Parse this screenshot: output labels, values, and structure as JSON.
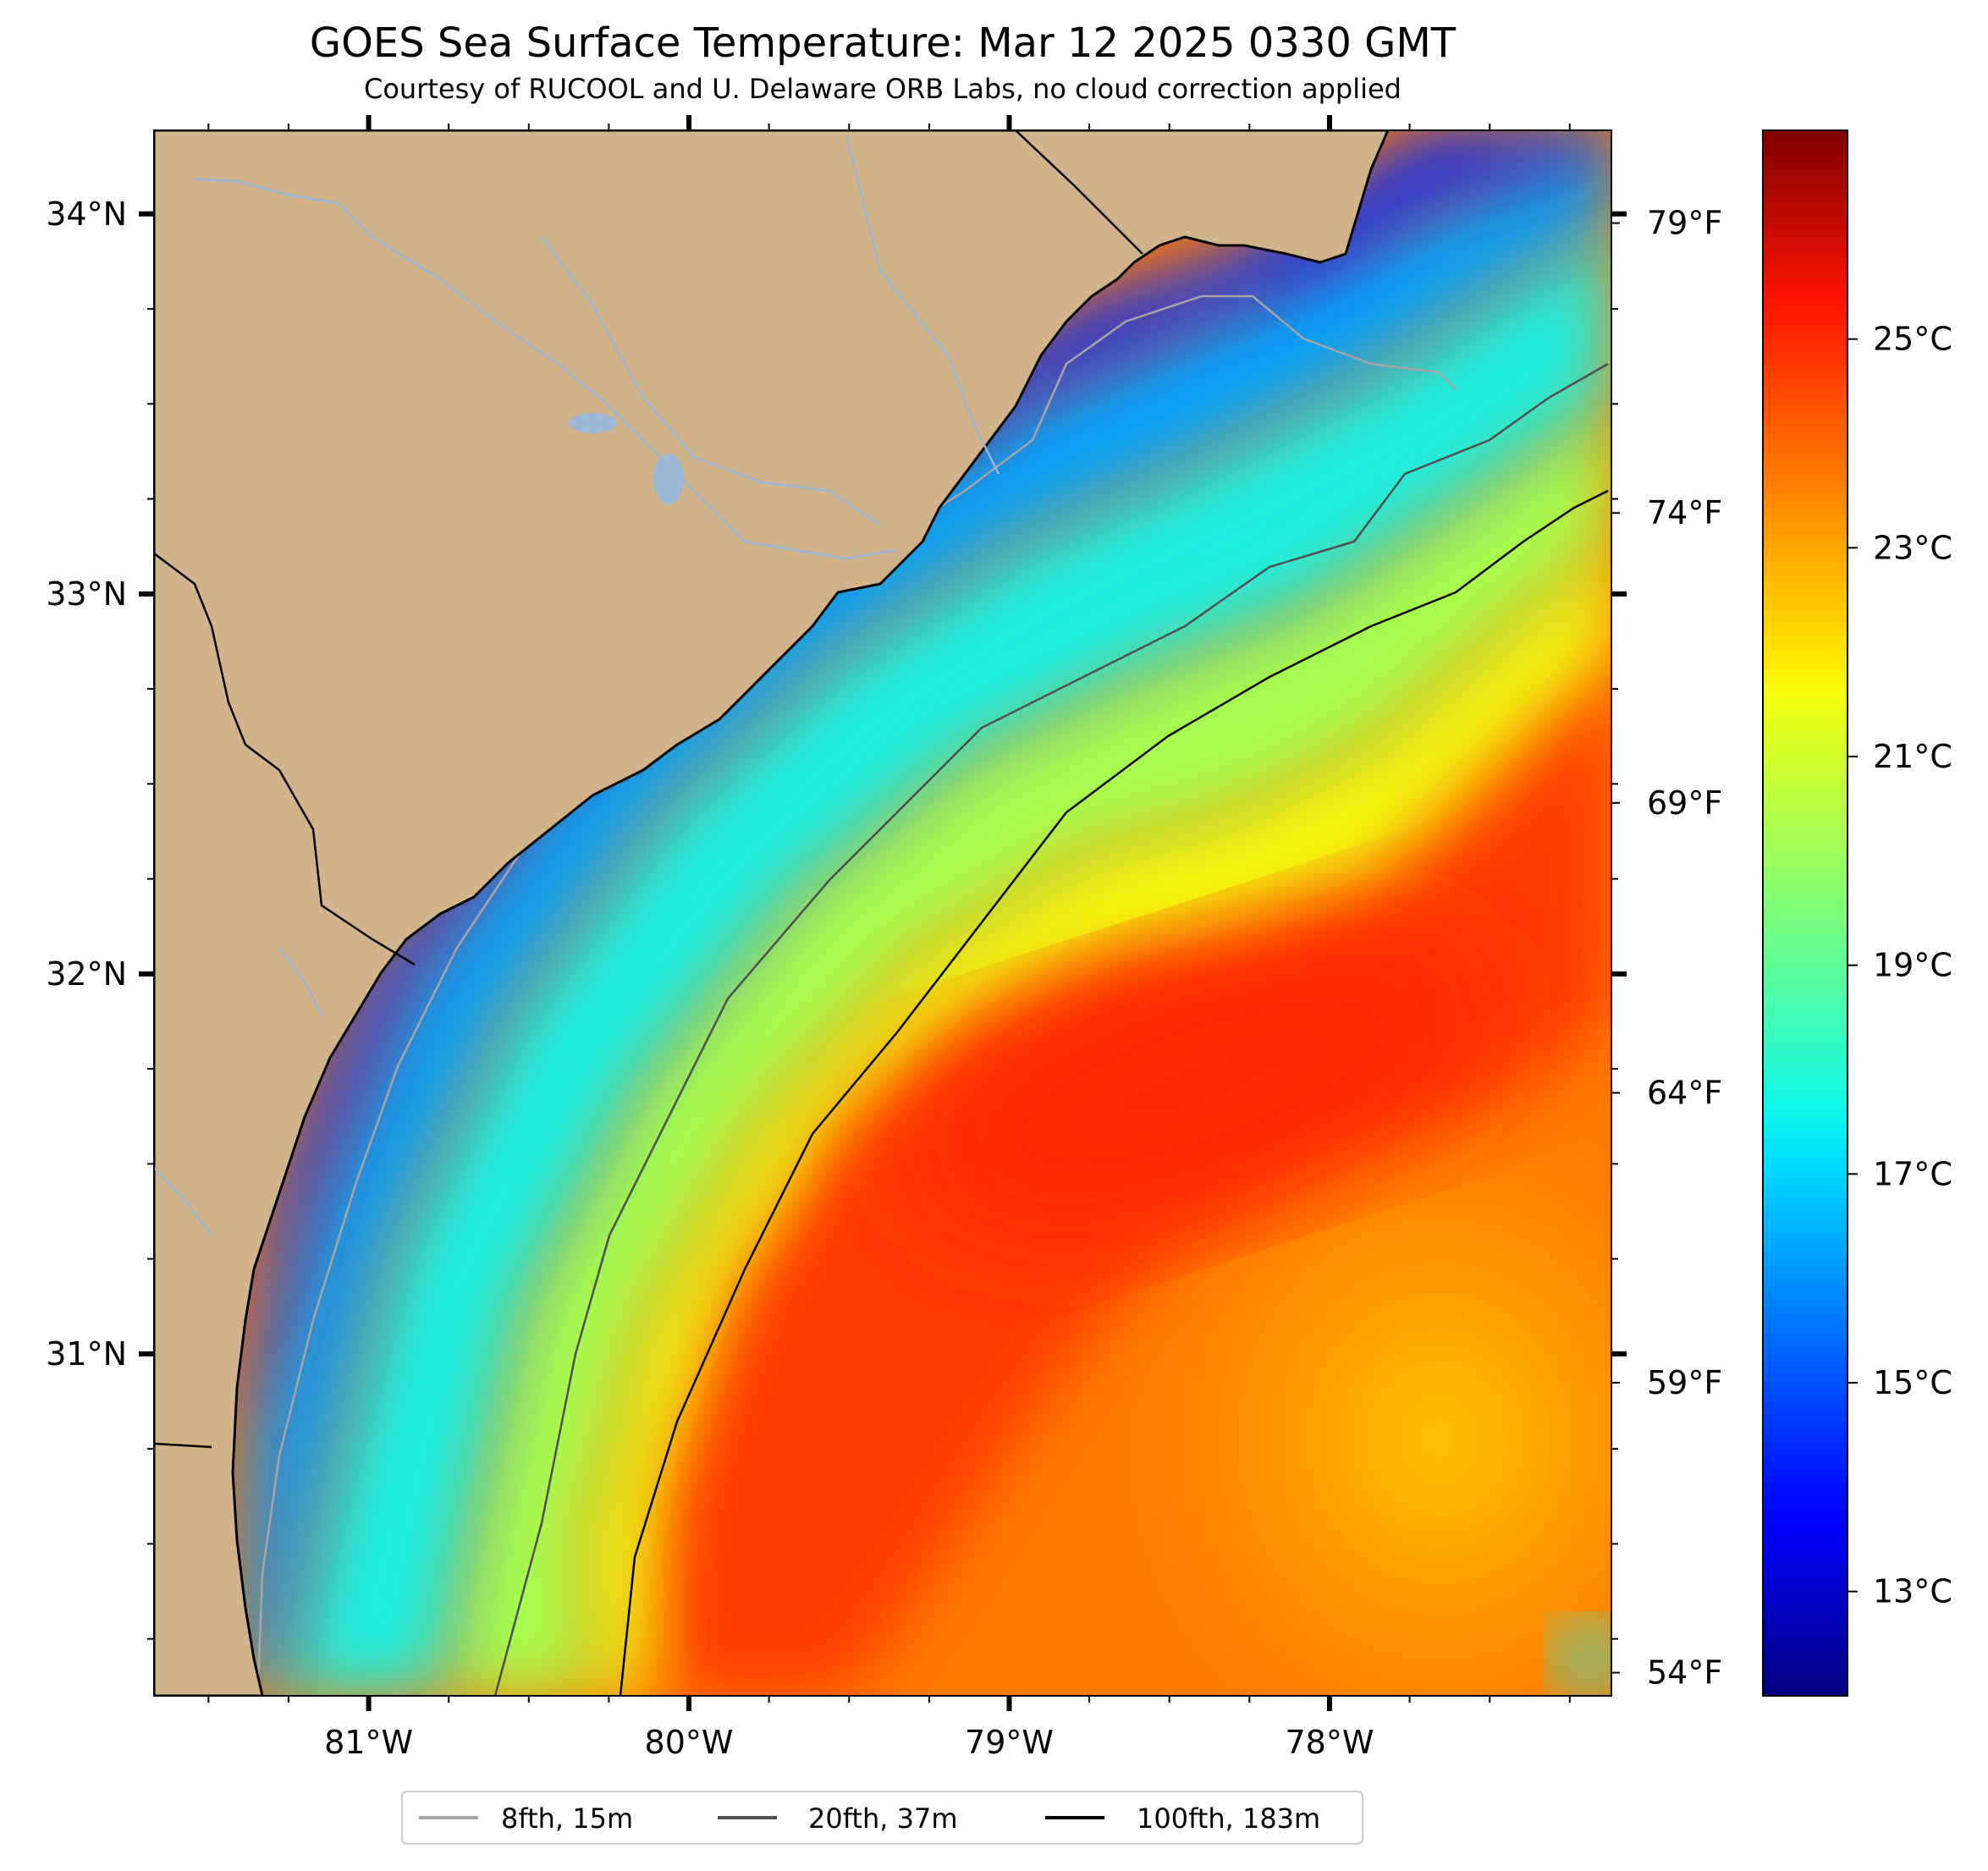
{
  "figure": {
    "title": "GOES Sea Surface Temperature: Mar 12 2025 0330 GMT",
    "subtitle": "Courtesy of RUCOOL and U. Delaware ORB Labs, no cloud correction applied"
  },
  "map": {
    "lon_range": [
      -81.67,
      -77.12
    ],
    "lat_range": [
      30.1,
      34.22
    ],
    "lat_ticks": [
      {
        "value": 34,
        "label": "34°N"
      },
      {
        "value": 33,
        "label": "33°N"
      },
      {
        "value": 32,
        "label": "32°N"
      },
      {
        "value": 31,
        "label": "31°N"
      }
    ],
    "lon_ticks": [
      {
        "value": -81,
        "label": "81°W"
      },
      {
        "value": -80,
        "label": "80°W"
      },
      {
        "value": -79,
        "label": "79°W"
      },
      {
        "value": -78,
        "label": "78°W"
      }
    ],
    "fahrenheit_ticks": [
      {
        "value": 79,
        "label": "79°F"
      },
      {
        "value": 74,
        "label": "74°F"
      },
      {
        "value": 69,
        "label": "69°F"
      },
      {
        "value": 64,
        "label": "64°F"
      },
      {
        "value": 59,
        "label": "59°F"
      },
      {
        "value": 54,
        "label": "54°F"
      }
    ],
    "land_color": "#d2b48c",
    "river_color": "#9db8d4",
    "coast_color": "#000000"
  },
  "colorbar": {
    "cmap": "jet",
    "range_c": [
      12,
      27
    ],
    "ticks": [
      {
        "value": 25,
        "label": "25°C"
      },
      {
        "value": 23,
        "label": "23°C"
      },
      {
        "value": 21,
        "label": "21°C"
      },
      {
        "value": 19,
        "label": "19°C"
      },
      {
        "value": 17,
        "label": "17°C"
      },
      {
        "value": 15,
        "label": "15°C"
      },
      {
        "value": 13,
        "label": "13°C"
      }
    ]
  },
  "legend": {
    "items": [
      {
        "label": "8fth, 15m",
        "color": "#a6a6a6"
      },
      {
        "label": "20fth, 37m",
        "color": "#4f4f4f"
      },
      {
        "label": "100fth, 183m",
        "color": "#000000"
      }
    ]
  }
}
